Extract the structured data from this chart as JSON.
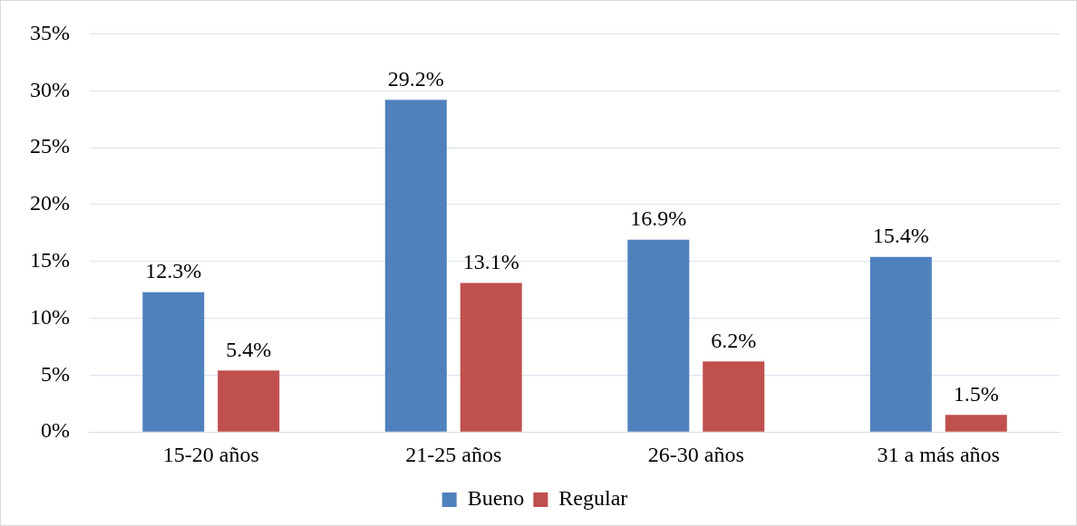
{
  "chart_data": {
    "type": "bar",
    "categories": [
      "15-20 años",
      "21-25 años",
      "26-30 años",
      "31 a más años"
    ],
    "series": [
      {
        "name": "Bueno",
        "color": "#4f81bd",
        "values": [
          12.3,
          29.2,
          16.9,
          15.4
        ],
        "value_labels": [
          "12.3%",
          "29.2%",
          "16.9%",
          "15.4%"
        ]
      },
      {
        "name": "Regular",
        "color": "#c0504d",
        "values": [
          5.4,
          13.1,
          6.2,
          1.5
        ],
        "value_labels": [
          "5.4%",
          "13.1%",
          "6.2%",
          "1.5%"
        ]
      }
    ],
    "ylim": [
      0,
      35
    ],
    "yticks": [
      {
        "value": 0,
        "label": "0%"
      },
      {
        "value": 5,
        "label": "5%"
      },
      {
        "value": 10,
        "label": "10%"
      },
      {
        "value": 15,
        "label": "15%"
      },
      {
        "value": 20,
        "label": "20%"
      },
      {
        "value": 25,
        "label": "25%"
      },
      {
        "value": 30,
        "label": "30%"
      },
      {
        "value": 35,
        "label": "35%"
      }
    ],
    "grid": "y",
    "legend": "bottom"
  }
}
